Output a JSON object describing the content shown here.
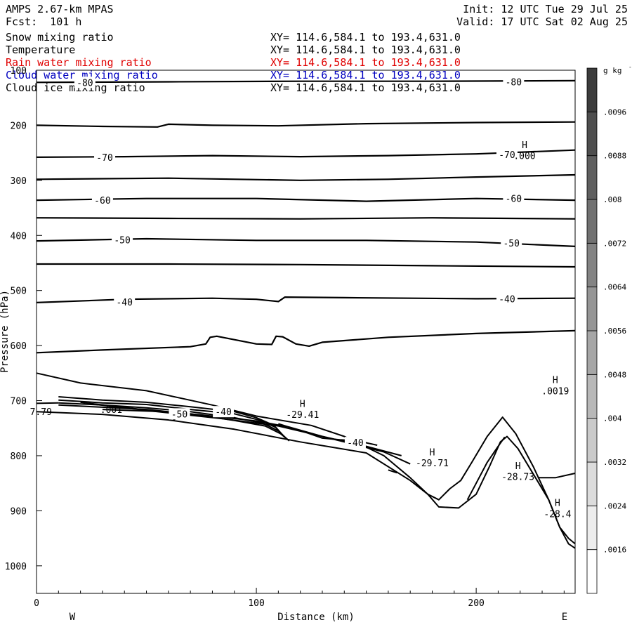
{
  "header": {
    "model": "AMPS 2.67-km MPAS",
    "forecast": "Fcst:  101 h",
    "init": "Init: 12 UTC Tue 29 Jul 25",
    "valid": "Valid: 17 UTC Sat 02 Aug 25"
  },
  "fields": [
    {
      "name": "Snow mixing ratio",
      "xy": "XY= 114.6,584.1 to 193.4,631.0",
      "color": "#000000"
    },
    {
      "name": "Temperature",
      "xy": "XY= 114.6,584.1 to 193.4,631.0",
      "color": "#000000"
    },
    {
      "name": "Rain water mixing ratio",
      "xy": "XY= 114.6,584.1 to 193.4,631.0",
      "color": "#e00000"
    },
    {
      "name": "Cloud water mixing ratio",
      "xy": "XY= 114.6,584.1 to 193.4,631.0",
      "color": "#0000c0"
    },
    {
      "name": "Cloud ice mixing ratio",
      "xy": "XY= 114.6,584.1 to 193.4,631.0",
      "color": "#000000"
    }
  ],
  "chart_data": {
    "type": "line",
    "xlabel": "Distance (km)",
    "ylabel": "Pressure (hPa)",
    "xlim": [
      0,
      245
    ],
    "ylim": [
      1050,
      100
    ],
    "x_ticks": [
      0,
      100,
      200
    ],
    "y_ticks": [
      100,
      200,
      300,
      400,
      500,
      600,
      700,
      800,
      900,
      1000
    ],
    "end_labels": {
      "left": "W",
      "right": "E"
    },
    "colorbar": {
      "unit": "g kg",
      "unit_exp": "-1",
      "ticks": [
        ".0016",
        ".0024",
        ".0032",
        ".004",
        ".0048",
        ".0056",
        ".0064",
        ".0072",
        ".008",
        ".0088",
        ".0096"
      ],
      "tick_values": [
        0.0016,
        0.0024,
        0.0032,
        0.004,
        0.0048,
        0.0056,
        0.0064,
        0.0072,
        0.008,
        0.0088,
        0.0096
      ],
      "range": [
        0.0008,
        0.0104
      ],
      "steps": 12
    },
    "temperature_isotherms": [
      {
        "points": [
          [
            0,
            122
          ],
          [
            60,
            121
          ],
          [
            120,
            120
          ],
          [
            180,
            120
          ],
          [
            245,
            119
          ]
        ]
      },
      {
        "points": [
          [
            0,
            200
          ],
          [
            30,
            202
          ],
          [
            55,
            203
          ],
          [
            60,
            198
          ],
          [
            80,
            200
          ],
          [
            110,
            201
          ],
          [
            150,
            197
          ],
          [
            200,
            195
          ],
          [
            245,
            194
          ]
        ]
      },
      {
        "points": [
          [
            0,
            258
          ],
          [
            40,
            257
          ],
          [
            80,
            255
          ],
          [
            120,
            257
          ],
          [
            160,
            255
          ],
          [
            200,
            252
          ],
          [
            245,
            245
          ]
        ]
      },
      {
        "points": [
          [
            0,
            298
          ],
          [
            60,
            296
          ],
          [
            120,
            300
          ],
          [
            160,
            298
          ],
          [
            200,
            294
          ],
          [
            245,
            290
          ]
        ]
      },
      {
        "points": [
          [
            0,
            336
          ],
          [
            50,
            333
          ],
          [
            100,
            333
          ],
          [
            150,
            338
          ],
          [
            200,
            333
          ],
          [
            245,
            336
          ]
        ]
      },
      {
        "points": [
          [
            0,
            368
          ],
          [
            60,
            369
          ],
          [
            120,
            370
          ],
          [
            180,
            368
          ],
          [
            245,
            370
          ]
        ]
      },
      {
        "points": [
          [
            0,
            410
          ],
          [
            50,
            406
          ],
          [
            100,
            409
          ],
          [
            150,
            409
          ],
          [
            200,
            412
          ],
          [
            245,
            420
          ]
        ]
      },
      {
        "points": [
          [
            0,
            452
          ],
          [
            60,
            452
          ],
          [
            120,
            453
          ],
          [
            180,
            455
          ],
          [
            245,
            457
          ]
        ]
      },
      {
        "points": [
          [
            0,
            522
          ],
          [
            40,
            516
          ],
          [
            80,
            514
          ],
          [
            100,
            516
          ],
          [
            110,
            520
          ],
          [
            113,
            512
          ],
          [
            140,
            513
          ],
          [
            200,
            515
          ],
          [
            245,
            514
          ]
        ]
      },
      {
        "points": [
          [
            0,
            613
          ],
          [
            30,
            608
          ],
          [
            70,
            602
          ],
          [
            77,
            597
          ],
          [
            79,
            585
          ],
          [
            82,
            583
          ],
          [
            100,
            597
          ],
          [
            107,
            598
          ],
          [
            109,
            583
          ],
          [
            112,
            584
          ],
          [
            118,
            597
          ],
          [
            124,
            601
          ],
          [
            130,
            594
          ],
          [
            160,
            585
          ],
          [
            200,
            578
          ],
          [
            245,
            573
          ]
        ]
      }
    ],
    "isotherm_labels": [
      {
        "x": 22,
        "y": 122,
        "text": "-80"
      },
      {
        "x": 217,
        "y": 121,
        "text": "-80"
      },
      {
        "x": 31,
        "y": 258,
        "text": "-70"
      },
      {
        "x": 214,
        "y": 253,
        "text": "-70"
      },
      {
        "x": 30,
        "y": 336,
        "text": "-60"
      },
      {
        "x": 217,
        "y": 333,
        "text": "-60"
      },
      {
        "x": 39,
        "y": 408,
        "text": "-50"
      },
      {
        "x": 216,
        "y": 414,
        "text": "-50"
      },
      {
        "x": 40,
        "y": 521,
        "text": "-40"
      },
      {
        "x": 214,
        "y": 515,
        "text": "-40"
      },
      {
        "x": 65,
        "y": 724,
        "text": "-50"
      },
      {
        "x": 85,
        "y": 720,
        "text": "-40"
      },
      {
        "x": 145,
        "y": 776,
        "text": "-40"
      }
    ],
    "terrain_lines": [
      {
        "points": [
          [
            0,
            650
          ],
          [
            20,
            668
          ],
          [
            50,
            682
          ],
          [
            80,
            708
          ],
          [
            100,
            728
          ],
          [
            125,
            745
          ],
          [
            140,
            765
          ],
          [
            158,
            800
          ],
          [
            170,
            840
          ],
          [
            178,
            870
          ],
          [
            183,
            880
          ],
          [
            188,
            860
          ],
          [
            193,
            845
          ],
          [
            198,
            812
          ],
          [
            205,
            765
          ],
          [
            212,
            730
          ],
          [
            218,
            760
          ],
          [
            226,
            820
          ],
          [
            233,
            880
          ],
          [
            238,
            930
          ],
          [
            242,
            950
          ],
          [
            245,
            960
          ]
        ]
      },
      {
        "points": [
          [
            0,
            720
          ],
          [
            30,
            725
          ],
          [
            60,
            735
          ],
          [
            90,
            752
          ],
          [
            120,
            775
          ],
          [
            150,
            795
          ],
          [
            170,
            845
          ],
          [
            178,
            870
          ],
          [
            183,
            893
          ],
          [
            192,
            895
          ],
          [
            200,
            870
          ],
          [
            206,
            820
          ],
          [
            211,
            775
          ],
          [
            214,
            765
          ],
          [
            219,
            787
          ],
          [
            227,
            840
          ],
          [
            233,
            880
          ],
          [
            238,
            930
          ],
          [
            242,
            960
          ],
          [
            245,
            968
          ]
        ]
      },
      {
        "points": [
          [
            20,
            703
          ],
          [
            50,
            717
          ],
          [
            75,
            726
          ],
          [
            100,
            737
          ],
          [
            115,
            748
          ],
          [
            130,
            765
          ],
          [
            150,
            783
          ],
          [
            166,
            800
          ]
        ]
      },
      {
        "points": [
          [
            25,
            706
          ],
          [
            55,
            720
          ],
          [
            85,
            733
          ],
          [
            110,
            746
          ],
          [
            125,
            760
          ],
          [
            140,
            775
          ],
          [
            158,
            793
          ],
          [
            170,
            815
          ]
        ]
      },
      {
        "points": [
          [
            110,
            742
          ],
          [
            122,
            757
          ],
          [
            130,
            768
          ],
          [
            138,
            771
          ],
          [
            146,
            773
          ],
          [
            155,
            781
          ]
        ]
      },
      {
        "points": [
          [
            196,
            880
          ],
          [
            200,
            850
          ],
          [
            205,
            812
          ],
          [
            210,
            783
          ],
          [
            213,
            766
          ]
        ]
      }
    ],
    "contour_bundle": [
      {
        "points": [
          [
            10,
            693
          ],
          [
            30,
            699
          ],
          [
            50,
            703
          ],
          [
            70,
            711
          ],
          [
            90,
            720
          ],
          [
            100,
            731
          ],
          [
            108,
            745
          ],
          [
            112,
            763
          ]
        ]
      },
      {
        "points": [
          [
            10,
            699
          ],
          [
            30,
            704
          ],
          [
            50,
            707
          ],
          [
            70,
            716
          ],
          [
            90,
            724
          ],
          [
            102,
            736
          ],
          [
            109,
            749
          ],
          [
            113,
            767
          ]
        ]
      },
      {
        "points": [
          [
            10,
            704
          ],
          [
            30,
            708
          ],
          [
            50,
            713
          ],
          [
            70,
            720
          ],
          [
            90,
            731
          ],
          [
            103,
            741
          ],
          [
            110,
            755
          ],
          [
            114,
            770
          ]
        ]
      },
      {
        "points": [
          [
            10,
            708
          ],
          [
            30,
            712
          ],
          [
            50,
            716
          ],
          [
            70,
            724
          ],
          [
            90,
            736
          ],
          [
            104,
            746
          ],
          [
            111,
            760
          ],
          [
            115,
            773
          ]
        ]
      },
      {
        "points": [
          [
            30,
            716
          ],
          [
            58,
            720
          ]
        ]
      },
      {
        "points": [
          [
            62,
            736
          ],
          [
            64,
            731
          ]
        ]
      },
      {
        "points": [
          [
            160,
            826
          ],
          [
            164,
            831
          ]
        ]
      },
      {
        "points": [
          [
            228,
            840
          ],
          [
            236,
            840
          ],
          [
            245,
            832
          ]
        ]
      },
      {
        "points": [
          [
            0,
            705
          ],
          [
            10,
            704
          ]
        ]
      }
    ],
    "annotations": [
      {
        "x": 121,
        "y": 705,
        "text": "H"
      },
      {
        "x": 121,
        "y": 725,
        "text": "-29.41"
      },
      {
        "x": 180,
        "y": 793,
        "text": "H"
      },
      {
        "x": 180,
        "y": 813,
        "text": "-29.71"
      },
      {
        "x": 219,
        "y": 818,
        "text": "H"
      },
      {
        "x": 219,
        "y": 838,
        "text": "-28.73"
      },
      {
        "x": 237,
        "y": 885,
        "text": "H"
      },
      {
        "x": 237,
        "y": 905,
        "text": "-28.4"
      },
      {
        "x": 236,
        "y": 662,
        "text": "H"
      },
      {
        "x": 236,
        "y": 682,
        "text": ".0019"
      },
      {
        "x": 222,
        "y": 235,
        "text": "H"
      },
      {
        "x": 222,
        "y": 255,
        "text": ".000"
      },
      {
        "x": 2,
        "y": 720,
        "text": "7.79"
      },
      {
        "x": 34,
        "y": 716,
        "text": ".001"
      }
    ]
  }
}
